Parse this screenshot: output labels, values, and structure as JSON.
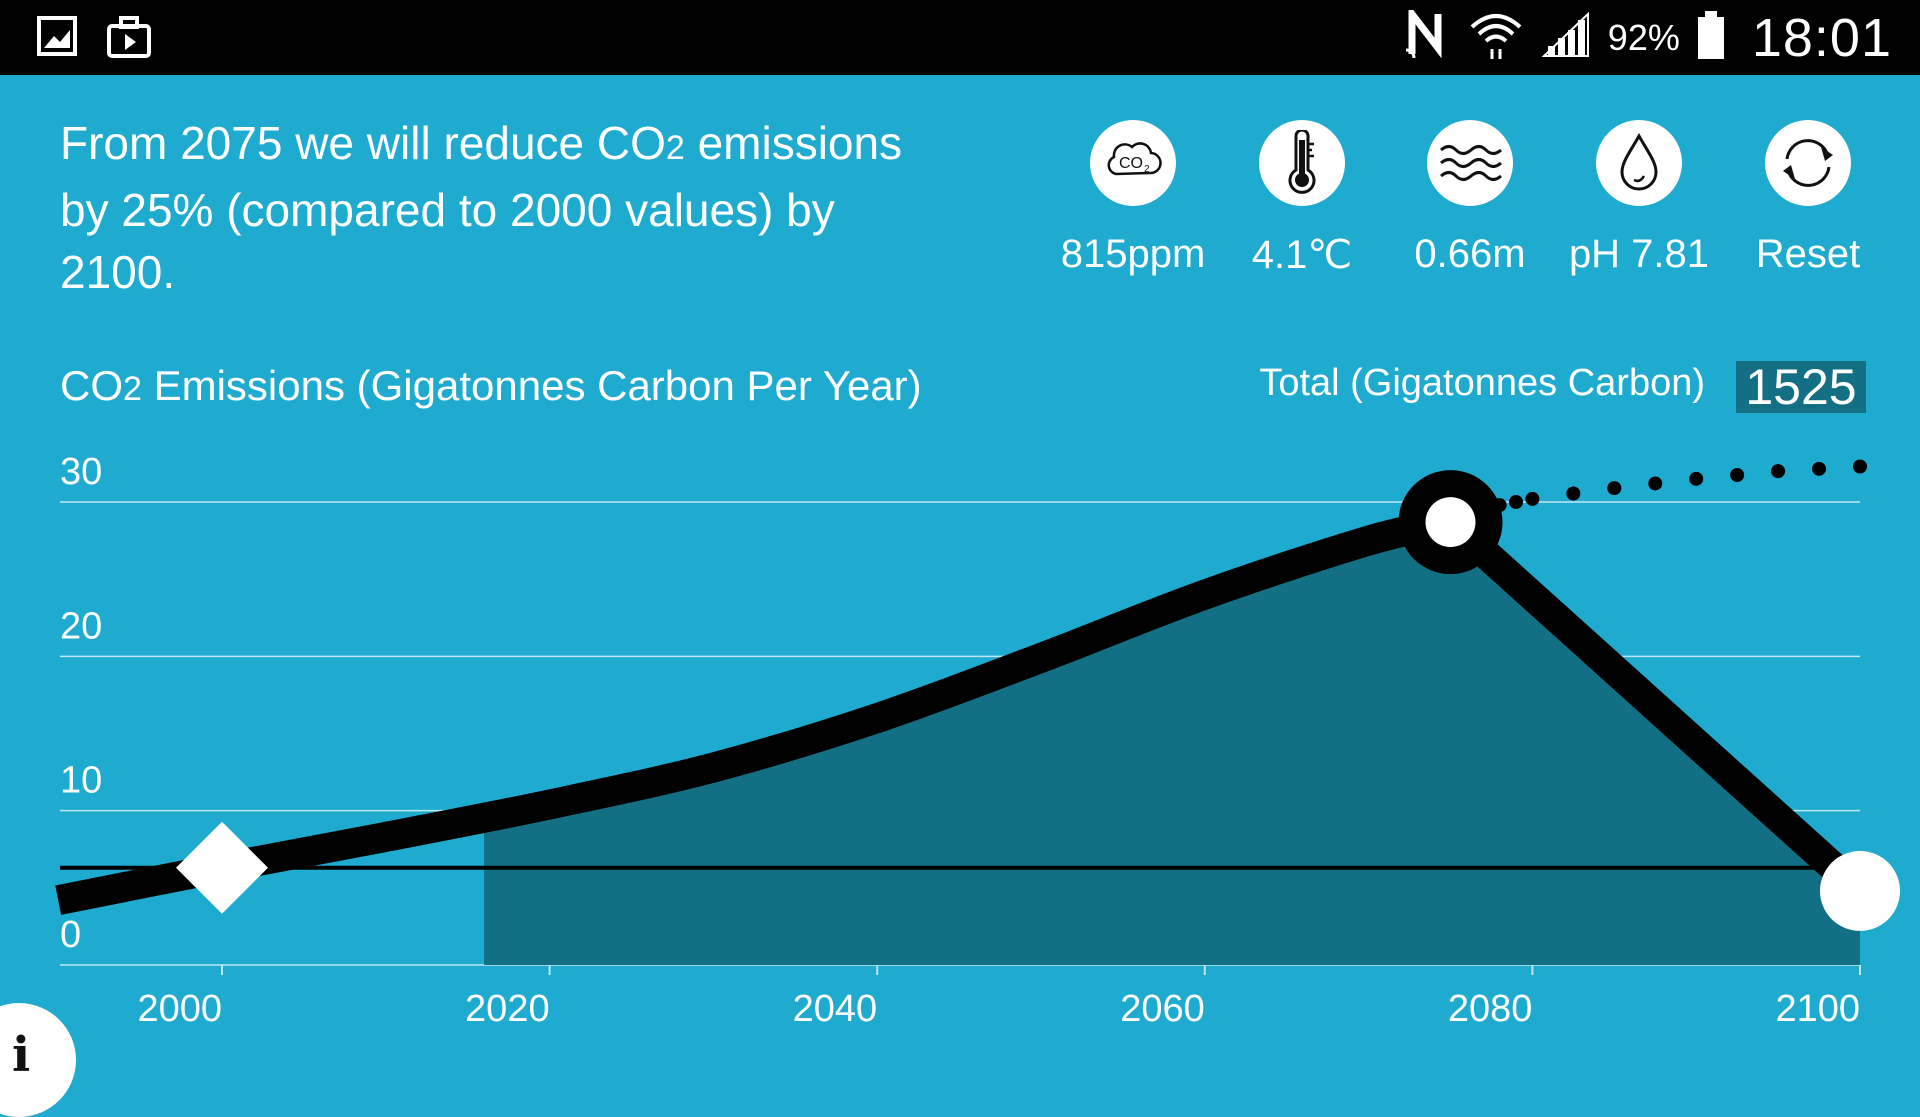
{
  "status_bar": {
    "icons": [
      "gallery-icon",
      "briefcase-icon",
      "nfc-icon",
      "wifi-icon",
      "signal-icon",
      "battery-icon"
    ],
    "battery": "92%",
    "time": "18:01"
  },
  "headline": {
    "part1": "From 2075 we will reduce CO",
    "sub": "2",
    "part2": " emissions by 25% (compared to 2000 values) by 2100."
  },
  "metrics": [
    {
      "icon": "co2-cloud-icon",
      "label": "815ppm"
    },
    {
      "icon": "thermometer-icon",
      "label": "4.1℃"
    },
    {
      "icon": "waves-icon",
      "label": "0.66m"
    },
    {
      "icon": "droplet-icon",
      "label": "pH 7.81"
    },
    {
      "icon": "refresh-icon",
      "label": "Reset"
    }
  ],
  "chart_title": {
    "part1": "CO",
    "sub": "2",
    "part2": " Emissions (Gigatonnes Carbon Per Year)"
  },
  "total": {
    "label": "Total (Gigatonnes Carbon)",
    "value": "1525"
  },
  "info_button": {
    "label": "i"
  },
  "colors": {
    "background": "#1eabcf",
    "area_fill": "#136f84",
    "line": "#000000",
    "grid": "#bfe8f2",
    "text": "#ffffff"
  },
  "chart_data": {
    "type": "line",
    "x_ticks": [
      "2000",
      "2020",
      "2040",
      "2060",
      "2080",
      "2100"
    ],
    "y_ticks": [
      "0",
      "10",
      "20",
      "30"
    ],
    "xlim": [
      1990,
      2100
    ],
    "ylim": [
      0,
      30
    ],
    "grid": true,
    "series": [
      {
        "style": "thick-line",
        "points": [
          [
            1990,
            4.2
          ],
          [
            2000,
            6.3
          ],
          [
            2010,
            8.3
          ],
          [
            2020,
            10.4
          ],
          [
            2030,
            12.8
          ],
          [
            2040,
            16.0
          ],
          [
            2050,
            19.9
          ],
          [
            2060,
            24.0
          ],
          [
            2070,
            27.5
          ],
          [
            2075,
            28.7
          ],
          [
            2100,
            4.8
          ]
        ]
      },
      {
        "style": "dotted",
        "points": [
          [
            2078,
            29.8
          ],
          [
            2080,
            30.2
          ],
          [
            2085,
            30.9
          ],
          [
            2090,
            31.5
          ],
          [
            2095,
            32.0
          ],
          [
            2100,
            32.3
          ]
        ]
      }
    ],
    "reference_line": 6.3,
    "shaded_area": {
      "from": 2016,
      "to": 2100
    },
    "markers": [
      {
        "x": 2000,
        "y": 6.3,
        "shape": "diamond"
      },
      {
        "x": 2075,
        "y": 28.7,
        "shape": "ring"
      },
      {
        "x": 2100,
        "y": 4.8,
        "shape": "circle"
      }
    ]
  }
}
